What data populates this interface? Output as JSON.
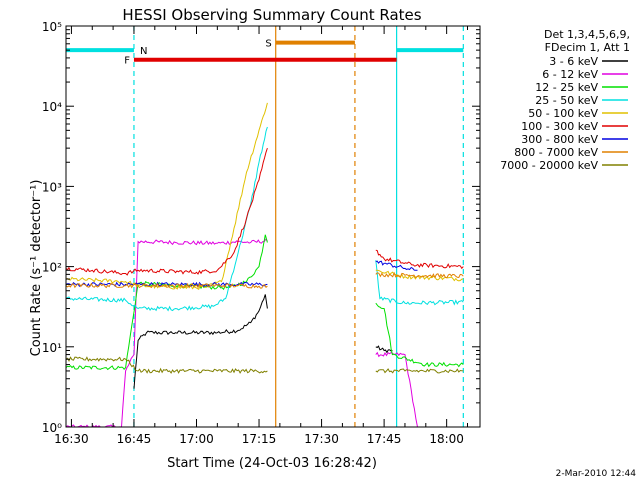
{
  "chart_data": {
    "type": "line",
    "title": "HESSI Observing Summary Count Rates",
    "xlabel": "Start Time (24-Oct-03 16:28:42)",
    "ylabel": "Count Rate (s⁻¹ detector⁻¹)",
    "y_scale": "log",
    "ylim": [
      1,
      100000
    ],
    "xlim": [
      "16:28:42",
      "18:08:00"
    ],
    "x_ticks": [
      "16:30",
      "16:45",
      "17:00",
      "17:15",
      "17:30",
      "17:45",
      "18:00"
    ],
    "y_ticks": [
      "10⁰",
      "10¹",
      "10²",
      "10³",
      "10⁴",
      "10⁵"
    ],
    "legend": {
      "header": [
        "Det 1,3,4,5,6,9,",
        "FDecim 1, Att 1"
      ],
      "placement": "right"
    },
    "series": [
      {
        "name": "3 - 6 keV",
        "color": "#000000",
        "segments": [
          [
            [
              "16:45:00",
              3
            ],
            [
              "16:46:00",
              12
            ],
            [
              "16:48:00",
              15
            ],
            [
              "16:55:00",
              15
            ],
            [
              "17:05:00",
              15
            ],
            [
              "17:10:00",
              16
            ],
            [
              "17:13:00",
              20
            ],
            [
              "17:15:00",
              28
            ],
            [
              "17:16:30",
              45
            ],
            [
              "17:17:00",
              30
            ]
          ],
          [
            [
              "17:43:00",
              10
            ],
            [
              "17:45:00",
              9
            ],
            [
              "17:47:00",
              9
            ]
          ]
        ]
      },
      {
        "name": "6 - 12 keV",
        "color": "#e000e0",
        "segments": [
          [
            [
              "16:28:42",
              1
            ],
            [
              "16:42:00",
              1
            ],
            [
              "16:43:00",
              5
            ],
            [
              "16:45:00",
              8
            ],
            [
              "16:46:00",
              205
            ],
            [
              "16:55:00",
              200
            ],
            [
              "17:05:00",
              195
            ],
            [
              "17:10:00",
              205
            ],
            [
              "17:13:00",
              200
            ],
            [
              "17:17:00",
              210
            ]
          ],
          [
            [
              "17:43:00",
              8
            ],
            [
              "17:50:00",
              8
            ],
            [
              "17:53:00",
              1
            ]
          ]
        ]
      },
      {
        "name": "12 - 25 keV",
        "color": "#00e000",
        "segments": [
          [
            [
              "16:28:42",
              5.5
            ],
            [
              "16:43:00",
              5.5
            ],
            [
              "16:46:00",
              62
            ],
            [
              "16:55:00",
              58
            ],
            [
              "17:05:00",
              55
            ],
            [
              "17:08:00",
              55
            ],
            [
              "17:12:00",
              65
            ],
            [
              "17:15:00",
              100
            ],
            [
              "17:16:30",
              250
            ],
            [
              "17:17:00",
              200
            ]
          ],
          [
            [
              "17:43:00",
              35
            ],
            [
              "17:45:00",
              30
            ],
            [
              "17:47:00",
              8
            ],
            [
              "17:55:00",
              6
            ],
            [
              "18:04:00",
              6
            ]
          ]
        ]
      },
      {
        "name": "25 - 50 keV",
        "color": "#00e0e0",
        "segments": [
          [
            [
              "16:28:42",
              40
            ],
            [
              "16:43:00",
              38
            ],
            [
              "16:46:00",
              30
            ],
            [
              "16:55:00",
              30
            ],
            [
              "17:04:00",
              32
            ],
            [
              "17:07:00",
              40
            ],
            [
              "17:10:00",
              150
            ],
            [
              "17:13:00",
              600
            ],
            [
              "17:15:00",
              2000
            ],
            [
              "17:17:00",
              5500
            ]
          ],
          [
            [
              "17:43:00",
              120
            ],
            [
              "17:44:00",
              40
            ],
            [
              "17:50:00",
              35
            ],
            [
              "18:04:00",
              36
            ]
          ]
        ]
      },
      {
        "name": "50 - 100 keV",
        "color": "#e0c000",
        "segments": [
          [
            [
              "16:28:42",
              70
            ],
            [
              "16:43:00",
              65
            ],
            [
              "16:46:00",
              58
            ],
            [
              "16:55:00",
              55
            ],
            [
              "17:02:00",
              55
            ],
            [
              "17:06:00",
              65
            ],
            [
              "17:09:00",
              300
            ],
            [
              "17:12:00",
              1500
            ],
            [
              "17:15:00",
              5000
            ],
            [
              "17:17:00",
              11000
            ]
          ],
          [
            [
              "17:43:00",
              90
            ],
            [
              "17:50:00",
              75
            ],
            [
              "18:04:00",
              70
            ]
          ]
        ]
      },
      {
        "name": "100 - 300 keV",
        "color": "#e00000",
        "segments": [
          [
            [
              "16:28:42",
              95
            ],
            [
              "16:35:00",
              90
            ],
            [
              "16:43:00",
              82
            ],
            [
              "16:46:00",
              90
            ],
            [
              "17:00:00",
              85
            ],
            [
              "17:05:00",
              90
            ],
            [
              "17:09:00",
              150
            ],
            [
              "17:12:00",
              400
            ],
            [
              "17:15:00",
              1200
            ],
            [
              "17:17:00",
              3000
            ]
          ],
          [
            [
              "17:43:00",
              160
            ],
            [
              "17:45:00",
              125
            ],
            [
              "17:52:00",
              105
            ],
            [
              "18:04:00",
              100
            ]
          ]
        ]
      },
      {
        "name": "300 - 800 keV",
        "color": "#0000e0",
        "segments": [
          [
            [
              "16:28:42",
              60
            ],
            [
              "16:43:00",
              60
            ],
            [
              "16:55:00",
              60
            ],
            [
              "17:10:00",
              60
            ],
            [
              "17:17:00",
              60
            ]
          ],
          [
            [
              "17:43:00",
              115
            ],
            [
              "17:45:00",
              110
            ],
            [
              "17:50:00",
              95
            ],
            [
              "17:53:00",
              90
            ]
          ]
        ]
      },
      {
        "name": "800 - 7000 keV",
        "color": "#e08000",
        "segments": [
          [
            [
              "16:28:42",
              58
            ],
            [
              "16:43:00",
              58
            ],
            [
              "16:55:00",
              58
            ],
            [
              "17:10:00",
              58
            ],
            [
              "17:15:00",
              57
            ],
            [
              "17:17:00",
              57
            ]
          ],
          [
            [
              "17:43:00",
              80
            ],
            [
              "17:50:00",
              78
            ],
            [
              "18:04:00",
              76
            ]
          ]
        ]
      },
      {
        "name": "7000 - 20000 keV",
        "color": "#808000",
        "segments": [
          [
            [
              "16:28:42",
              7
            ],
            [
              "16:43:00",
              7
            ],
            [
              "16:46:00",
              5
            ],
            [
              "16:55:00",
              5
            ],
            [
              "17:05:00",
              5
            ],
            [
              "17:17:00",
              5
            ]
          ],
          [
            [
              "17:43:00",
              5
            ],
            [
              "17:50:00",
              5
            ],
            [
              "18:04:00",
              5
            ]
          ]
        ]
      }
    ],
    "annotations": {
      "flags": [
        {
          "label": "N",
          "color": "#00e0e0",
          "segments": [
            [
              "16:28:42",
              "16:45:00",
              50000
            ],
            [
              "17:48:00",
              "18:04:00",
              50000
            ]
          ]
        },
        {
          "label": "F",
          "color": "#e00000",
          "segments": [
            [
              "16:45:00",
              "17:48:00",
              38000
            ]
          ]
        },
        {
          "label": "S",
          "color": "#e08000",
          "segments": [
            [
              "17:19:00",
              "17:38:00",
              62000
            ]
          ]
        }
      ],
      "vlines": [
        {
          "time": "16:45:00",
          "color": "#00e0e0",
          "style": "dashed"
        },
        {
          "time": "17:48:00",
          "color": "#00e0e0",
          "style": "solid"
        },
        {
          "time": "18:04:00",
          "color": "#00e0e0",
          "style": "dashed"
        },
        {
          "time": "17:19:00",
          "color": "#e08000",
          "style": "solid"
        },
        {
          "time": "17:38:00",
          "color": "#e08000",
          "style": "dashed"
        }
      ]
    }
  },
  "footer": {
    "timestamp": "2-Mar-2010 12:44"
  }
}
